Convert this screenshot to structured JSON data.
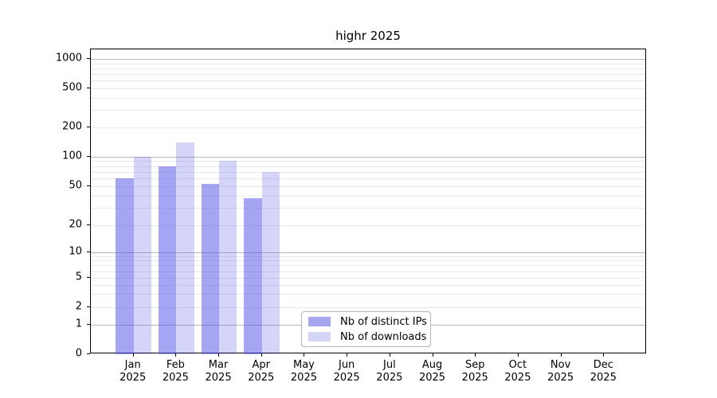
{
  "chart_data": {
    "type": "bar",
    "title": "highr 2025",
    "xlabel": "",
    "ylabel": "",
    "categories": [
      "Jan",
      "Feb",
      "Mar",
      "Apr",
      "May",
      "Jun",
      "Jul",
      "Aug",
      "Sep",
      "Oct",
      "Nov",
      "Dec"
    ],
    "category_year_label": "2025",
    "series": [
      {
        "name": "Nb of distinct IPs",
        "values": [
          60,
          80,
          53,
          38,
          0,
          0,
          0,
          0,
          0,
          0,
          0,
          0
        ],
        "color": "#a5a5f0",
        "fill_rgba": "rgba(88,88,232,0.54)"
      },
      {
        "name": "Nb of downloads",
        "values": [
          100,
          140,
          91,
          70,
          0,
          0,
          0,
          0,
          0,
          0,
          0,
          0
        ],
        "color": "#d5d5f7",
        "fill_rgba": "rgba(88,88,232,0.25)"
      }
    ],
    "y_ticks": [
      0,
      1,
      2,
      5,
      10,
      20,
      50,
      100,
      200,
      500,
      1000
    ],
    "y_tick_labels": [
      "0",
      "1",
      "2",
      "5",
      "10",
      "20",
      "50",
      "100",
      "200",
      "500",
      "1000"
    ],
    "y_scale": "log-like (0,1,2,5,10,20,50,100,200,500,1000)",
    "ylim": [
      0,
      1000
    ],
    "grid": "horizontal, minor light gray + major gray at powers of 10",
    "legend_position": "lower center-left inside plot",
    "colors": {
      "grid_major": "#b6b6b6",
      "grid_minor": "#e9e9e9",
      "axis": "#000000",
      "background": "#ffffff"
    }
  }
}
